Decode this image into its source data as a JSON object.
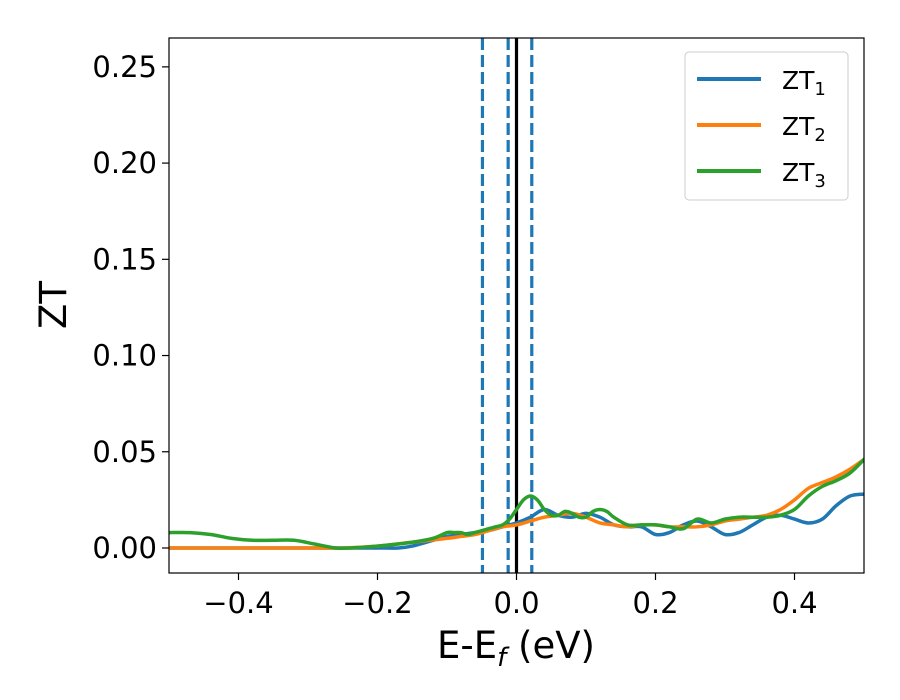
{
  "chart_data": {
    "type": "line",
    "xlabel": "E-E",
    "xlabel_sub": "f",
    "xlabel_unit": " (eV)",
    "ylabel": "ZT",
    "xlim": [
      -0.5,
      0.5
    ],
    "ylim": [
      -0.013,
      0.265
    ],
    "xticks": [
      -0.4,
      -0.2,
      0.0,
      0.2,
      0.4
    ],
    "xtick_labels": [
      "−0.4",
      "−0.2",
      "0.0",
      "0.2",
      "0.4"
    ],
    "yticks": [
      0.0,
      0.05,
      0.1,
      0.15,
      0.2,
      0.25
    ],
    "ytick_labels": [
      "0.00",
      "0.05",
      "0.10",
      "0.15",
      "0.20",
      "0.25"
    ],
    "legend_position": "top-right",
    "vertical_lines": [
      {
        "x": -0.049,
        "style": "dashed",
        "color": "#1f77b4"
      },
      {
        "x": -0.012,
        "style": "dashed",
        "color": "#1f77b4"
      },
      {
        "x": 0.0,
        "style": "solid",
        "color": "#000000"
      },
      {
        "x": 0.022,
        "style": "dashed",
        "color": "#1f77b4"
      }
    ],
    "series": [
      {
        "name": "ZT",
        "name_sub": "1",
        "color": "#1f77b4",
        "x": [
          -0.5,
          -0.45,
          -0.4,
          -0.35,
          -0.3,
          -0.25,
          -0.2,
          -0.17,
          -0.15,
          -0.12,
          -0.1,
          -0.08,
          -0.06,
          -0.04,
          -0.02,
          0.0,
          0.02,
          0.04,
          0.06,
          0.08,
          0.1,
          0.12,
          0.14,
          0.16,
          0.18,
          0.2,
          0.22,
          0.24,
          0.26,
          0.28,
          0.3,
          0.32,
          0.34,
          0.36,
          0.38,
          0.4,
          0.42,
          0.44,
          0.46,
          0.48,
          0.5
        ],
        "y": [
          0.0,
          0.0,
          0.0,
          0.0,
          0.0,
          0.0,
          0.0,
          0.0,
          0.001,
          0.004,
          0.006,
          0.007,
          0.008,
          0.009,
          0.011,
          0.013,
          0.016,
          0.02,
          0.017,
          0.016,
          0.018,
          0.016,
          0.012,
          0.011,
          0.011,
          0.007,
          0.008,
          0.012,
          0.014,
          0.011,
          0.007,
          0.008,
          0.012,
          0.016,
          0.017,
          0.015,
          0.013,
          0.015,
          0.022,
          0.027,
          0.028
        ]
      },
      {
        "name": "ZT",
        "name_sub": "2",
        "color": "#ff7f0e",
        "x": [
          -0.5,
          -0.45,
          -0.4,
          -0.35,
          -0.3,
          -0.25,
          -0.2,
          -0.15,
          -0.1,
          -0.08,
          -0.06,
          -0.04,
          -0.02,
          0.0,
          0.02,
          0.04,
          0.06,
          0.08,
          0.1,
          0.12,
          0.14,
          0.16,
          0.18,
          0.2,
          0.22,
          0.24,
          0.26,
          0.28,
          0.3,
          0.32,
          0.34,
          0.36,
          0.38,
          0.4,
          0.42,
          0.44,
          0.46,
          0.48,
          0.5
        ],
        "y": [
          0.0,
          0.0,
          0.0,
          0.0,
          0.0,
          0.0,
          0.001,
          0.003,
          0.005,
          0.006,
          0.007,
          0.009,
          0.011,
          0.012,
          0.014,
          0.016,
          0.017,
          0.018,
          0.016,
          0.013,
          0.012,
          0.011,
          0.012,
          0.012,
          0.011,
          0.011,
          0.011,
          0.012,
          0.014,
          0.015,
          0.016,
          0.017,
          0.02,
          0.025,
          0.031,
          0.034,
          0.037,
          0.041,
          0.046
        ]
      },
      {
        "name": "ZT",
        "name_sub": "3",
        "color": "#2ca02c",
        "x": [
          -0.5,
          -0.47,
          -0.44,
          -0.41,
          -0.38,
          -0.35,
          -0.32,
          -0.29,
          -0.26,
          -0.24,
          -0.2,
          -0.15,
          -0.12,
          -0.1,
          -0.09,
          -0.08,
          -0.07,
          -0.06,
          -0.05,
          -0.04,
          -0.03,
          -0.02,
          -0.01,
          0.0,
          0.01,
          0.02,
          0.03,
          0.04,
          0.05,
          0.06,
          0.07,
          0.08,
          0.09,
          0.1,
          0.11,
          0.12,
          0.13,
          0.14,
          0.16,
          0.18,
          0.2,
          0.22,
          0.24,
          0.26,
          0.28,
          0.3,
          0.32,
          0.34,
          0.36,
          0.38,
          0.4,
          0.42,
          0.44,
          0.46,
          0.48,
          0.5
        ],
        "y": [
          0.008,
          0.008,
          0.007,
          0.005,
          0.004,
          0.004,
          0.004,
          0.002,
          0.0,
          0.0,
          0.001,
          0.003,
          0.005,
          0.008,
          0.008,
          0.008,
          0.007,
          0.008,
          0.009,
          0.01,
          0.011,
          0.012,
          0.015,
          0.02,
          0.025,
          0.027,
          0.025,
          0.02,
          0.017,
          0.017,
          0.019,
          0.018,
          0.016,
          0.016,
          0.019,
          0.02,
          0.019,
          0.016,
          0.012,
          0.012,
          0.012,
          0.011,
          0.01,
          0.015,
          0.013,
          0.015,
          0.016,
          0.016,
          0.016,
          0.017,
          0.02,
          0.027,
          0.032,
          0.035,
          0.039,
          0.046
        ]
      }
    ]
  }
}
